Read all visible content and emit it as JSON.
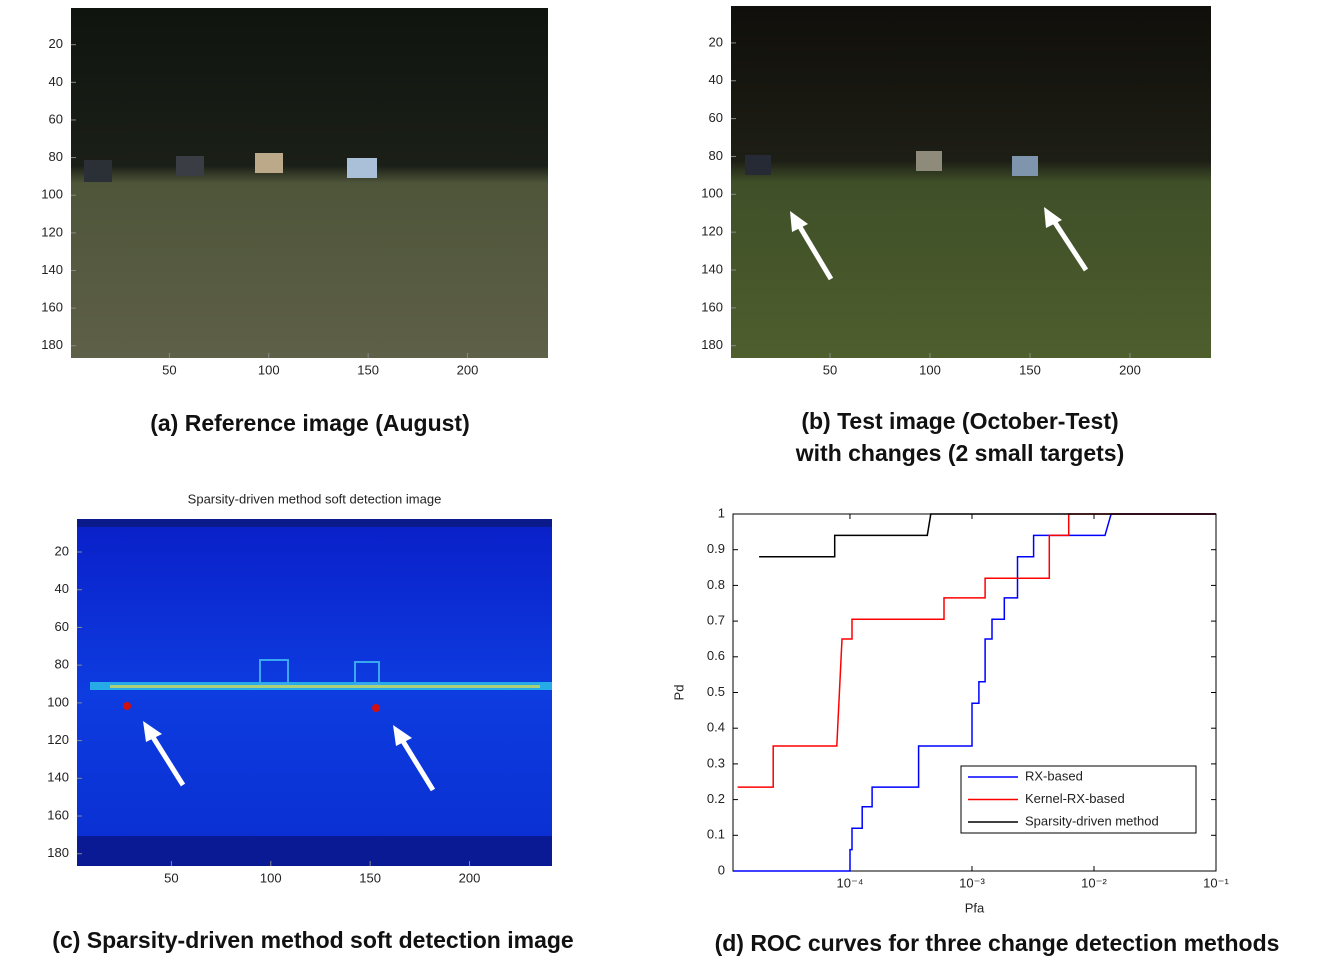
{
  "chart_data": [
    {
      "type": "image",
      "caption": [
        "(a) Reference image (August)"
      ],
      "xlim": [
        0.5,
        240.5
      ],
      "ylim": [
        0.5,
        186.5
      ],
      "xticks": [
        50,
        100,
        150,
        200
      ],
      "yticks": [
        20,
        40,
        60,
        80,
        100,
        120,
        140,
        160,
        180
      ]
    },
    {
      "type": "image",
      "caption": [
        "(b) Test image (October-Test)",
        "with changes (2 small targets)"
      ],
      "xlim": [
        0.5,
        240.5
      ],
      "ylim": [
        0.5,
        186.5
      ],
      "xticks": [
        50,
        100,
        150,
        200
      ],
      "yticks": [
        20,
        40,
        60,
        80,
        100,
        120,
        140,
        160,
        180
      ]
    },
    {
      "type": "image",
      "title": "Sparsity-driven method soft detection image",
      "caption": [
        "(c) Sparsity-driven method soft detection image"
      ],
      "xlim": [
        2.5,
        241.5
      ],
      "ylim": [
        2.5,
        186.5
      ],
      "xticks": [
        50,
        100,
        150,
        200
      ],
      "yticks": [
        20,
        40,
        60,
        80,
        100,
        120,
        140,
        160,
        180
      ]
    },
    {
      "type": "line",
      "caption": [
        "(d) ROC curves for three change detection methods"
      ],
      "xlabel": "Pfa",
      "ylabel": "Pd",
      "xscale": "log",
      "xlim": [
        1.1e-05,
        0.1
      ],
      "ylim": [
        0,
        1
      ],
      "xticks": [
        {
          "value": 0.0001,
          "label": "10⁻⁴"
        },
        {
          "value": 0.001,
          "label": "10⁻³"
        },
        {
          "value": 0.01,
          "label": "10⁻²"
        },
        {
          "value": 0.1,
          "label": "10⁻¹"
        }
      ],
      "yticks": [
        0,
        0.1,
        0.2,
        0.3,
        0.4,
        0.5,
        0.6,
        0.7,
        0.8,
        0.9,
        1
      ],
      "legend": "lower right",
      "series": [
        {
          "name": "RX-based",
          "color": "#0000ff",
          "x": [
            1.1e-05,
            0.0001,
            0.0001,
            0.000104,
            0.000104,
            0.000126,
            0.000126,
            0.000152,
            0.000152,
            0.000184,
            0.000184,
            0.000365,
            0.000365,
            0.00039,
            0.00039,
            0.001,
            0.001,
            0.00114,
            0.00114,
            0.00128,
            0.00128,
            0.00146,
            0.00146,
            0.00184,
            0.00184,
            0.00236,
            0.00236,
            0.0032,
            0.0032,
            0.00425,
            0.00425,
            0.0123,
            0.0138,
            0.1
          ],
          "values": [
            0,
            0,
            0.06,
            0.06,
            0.12,
            0.12,
            0.18,
            0.18,
            0.235,
            0.235,
            0.235,
            0.235,
            0.35,
            0.35,
            0.35,
            0.35,
            0.47,
            0.47,
            0.53,
            0.53,
            0.65,
            0.65,
            0.705,
            0.705,
            0.765,
            0.765,
            0.88,
            0.88,
            0.94,
            0.94,
            0.94,
            0.94,
            1,
            1
          ]
        },
        {
          "name": "Kernel-RX-based",
          "color": "#ff0000",
          "x": [
            1.2e-05,
            2.35e-05,
            2.35e-05,
            7.8e-05,
            8.6e-05,
            0.000104,
            0.000104,
            0.00059,
            0.00059,
            0.00128,
            0.00128,
            0.0043,
            0.0043,
            0.0062,
            0.0062,
            0.1
          ],
          "values": [
            0.235,
            0.235,
            0.35,
            0.35,
            0.65,
            0.65,
            0.705,
            0.705,
            0.765,
            0.765,
            0.82,
            0.82,
            0.94,
            0.94,
            1,
            1
          ]
        },
        {
          "name": "Sparsity-driven method",
          "color": "#000000",
          "x": [
            1.8e-05,
            7.5e-05,
            7.5e-05,
            0.00043,
            0.00046,
            0.1
          ],
          "values": [
            0.88,
            0.88,
            0.94,
            0.94,
            1,
            1
          ]
        }
      ]
    }
  ]
}
